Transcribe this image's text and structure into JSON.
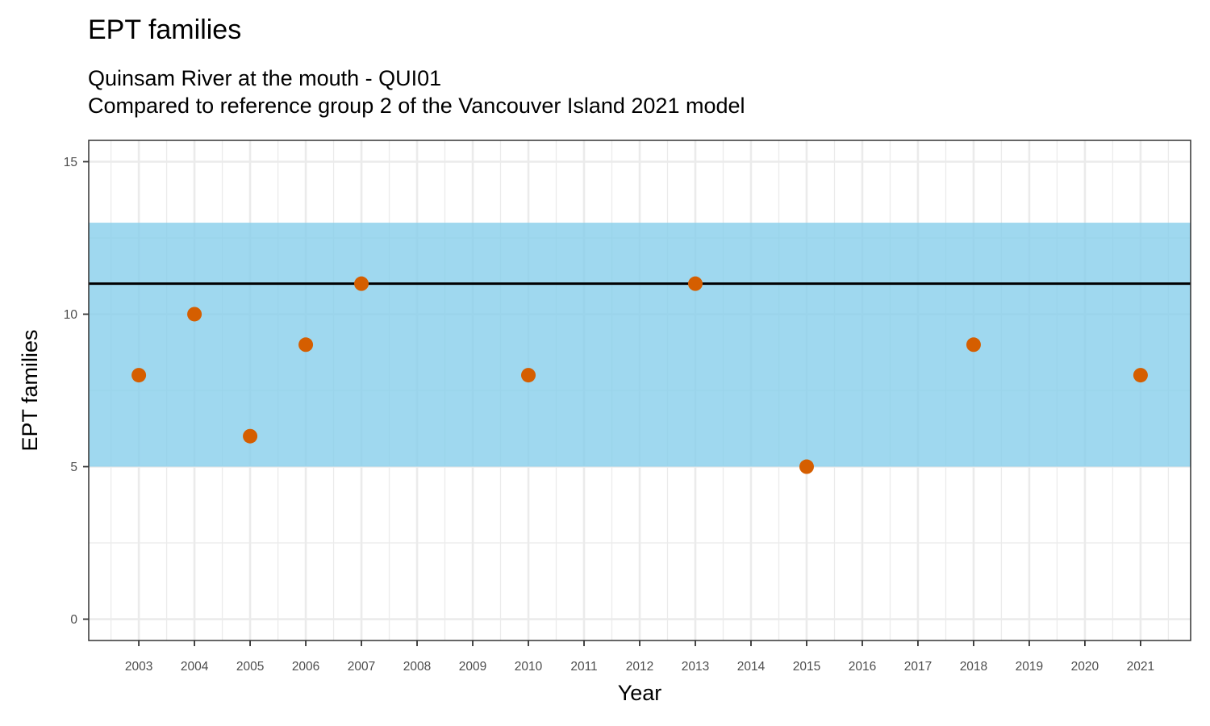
{
  "chart_data": {
    "type": "scatter",
    "title": "EPT families",
    "subtitle_lines": [
      "Quinsam River at the mouth - QUI01",
      "Compared to reference group 2 of the Vancouver Island 2021 model"
    ],
    "xlabel": "Year",
    "ylabel": "EPT families",
    "xlim": [
      2002.1,
      2021.9
    ],
    "ylim": [
      -0.7,
      15.7
    ],
    "x_ticks": [
      2003,
      2004,
      2005,
      2006,
      2007,
      2008,
      2009,
      2010,
      2011,
      2012,
      2013,
      2014,
      2015,
      2016,
      2017,
      2018,
      2019,
      2020,
      2021
    ],
    "y_ticks": [
      0,
      5,
      10,
      15
    ],
    "grid": true,
    "reference_band": {
      "ymin": 5,
      "ymax": 13,
      "color": "#87CEEB"
    },
    "reference_line": {
      "y": 11,
      "color": "#000000"
    },
    "point_color": "#D55E00",
    "points": [
      {
        "x": 2003,
        "y": 8
      },
      {
        "x": 2004,
        "y": 10
      },
      {
        "x": 2005,
        "y": 6
      },
      {
        "x": 2006,
        "y": 9
      },
      {
        "x": 2007,
        "y": 11
      },
      {
        "x": 2010,
        "y": 8
      },
      {
        "x": 2013,
        "y": 11
      },
      {
        "x": 2015,
        "y": 5
      },
      {
        "x": 2018,
        "y": 9
      },
      {
        "x": 2021,
        "y": 8
      }
    ]
  }
}
